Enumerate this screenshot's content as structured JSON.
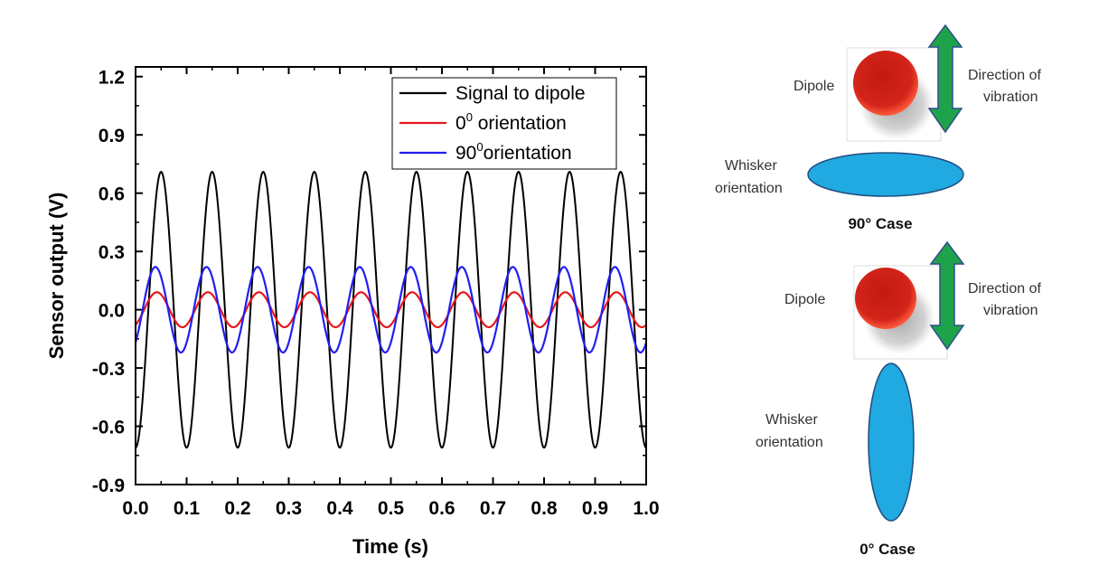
{
  "chart_data": {
    "type": "line",
    "xlabel": "Time (s)",
    "ylabel": "Sensor output (V)",
    "xlim": [
      0.0,
      1.0
    ],
    "ylim": [
      -0.9,
      1.25
    ],
    "xticks": [
      "0.0",
      "0.1",
      "0.2",
      "0.3",
      "0.4",
      "0.5",
      "0.6",
      "0.7",
      "0.8",
      "0.9",
      "1.0"
    ],
    "yticks": [
      "-0.9",
      "-0.6",
      "-0.3",
      "0.0",
      "0.3",
      "0.6",
      "0.9",
      "1.2"
    ],
    "frequency_hz": 10,
    "legend_position": "top-right",
    "series": [
      {
        "name": "Signal to dipole",
        "legend_base": "Signal to dipole",
        "legend_sup": "",
        "legend_rest": "",
        "amplitude": 0.71,
        "phase_deg": -90,
        "color": "#000000",
        "peaks": [
          {
            "x": 0.075,
            "y": 0.71
          },
          {
            "x": 0.975,
            "y": 0.71
          }
        ]
      },
      {
        "name": "0 orientation",
        "legend_base": "0",
        "legend_sup": "0",
        "legend_rest": " orientation",
        "amplitude": 0.09,
        "phase_deg": -60,
        "color": "#e8171c",
        "peaks": [
          {
            "x": 0.058,
            "y": 0.1
          },
          {
            "x": 0.158,
            "y": 0.09
          }
        ]
      },
      {
        "name": "90 orientation",
        "legend_base": "90",
        "legend_sup": "0",
        "legend_rest": "orientation",
        "amplitude": 0.22,
        "phase_deg": -50,
        "color": "#1f1ff2",
        "peaks": [
          {
            "x": 0.058,
            "y": 0.24
          },
          {
            "x": 0.158,
            "y": 0.23
          }
        ]
      }
    ]
  },
  "diagram": {
    "top": {
      "dipole_label": "Dipole",
      "direction_label_line1": "Direction of",
      "direction_label_line2": "vibration",
      "whisker_label_line1": "Whisker",
      "whisker_label_line2": "orientation",
      "case_label": "90° Case"
    },
    "bottom": {
      "dipole_label": "Dipole",
      "direction_label_line1": "Direction of",
      "direction_label_line2": "vibration",
      "whisker_label_line1": "Whisker",
      "whisker_label_line2": "orientation",
      "case_label": "0° Case"
    },
    "colors": {
      "dipole": "#d91e12",
      "arrow": "#1fa34a",
      "arrow_outline": "#2e4f8c",
      "whisker": "#21a9e1",
      "whisker_outline": "#1f4d80"
    }
  }
}
